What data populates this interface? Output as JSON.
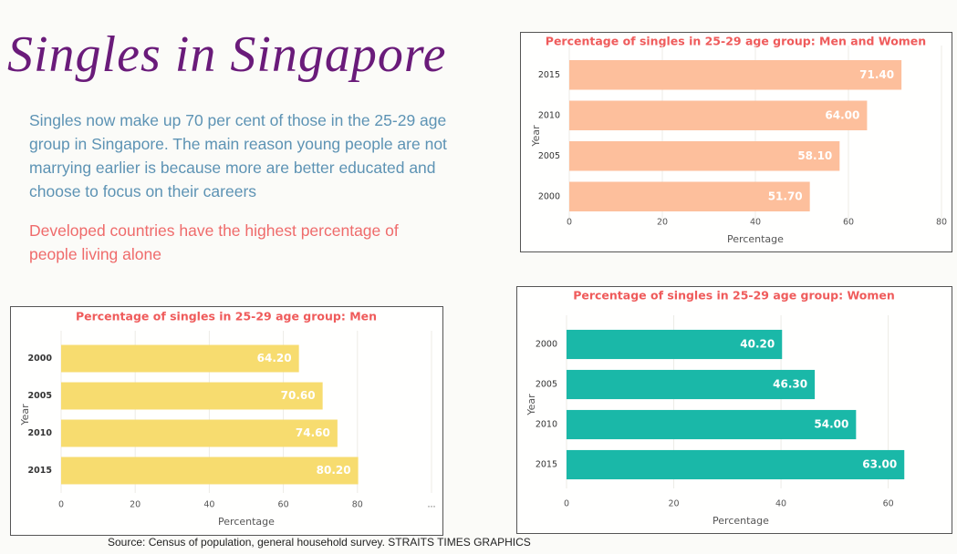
{
  "header": {
    "title": "Singles in Singapore",
    "intro": "Singles now make up 70 per cent of those in the 25-29 age group in Singapore. The main reason young people are not marrying earlier is because more are better educated and choose to focus on their careers",
    "note": "Developed  countries have the highest percentage of people living alone",
    "source": "Source: Census of population, general household survey. STRAITS TIMES GRAPHICS"
  },
  "chart_data": [
    {
      "type": "bar",
      "orientation": "horizontal",
      "title": "Percentage of singles in 25-29 age group: Men and Women",
      "categories": [
        "2015",
        "2010",
        "2005",
        "2000"
      ],
      "values": [
        71.4,
        64,
        58.1,
        51.7
      ],
      "value_labels": [
        "71.40",
        "64.00",
        "58.10",
        "51.70"
      ],
      "color": "#fdbf9c",
      "xlabel": "Percentage",
      "ylabel": "Year",
      "xlim": [
        0,
        80
      ],
      "xticks": [
        0,
        20,
        40,
        60,
        80
      ],
      "grid": true
    },
    {
      "type": "bar",
      "orientation": "horizontal",
      "title": "Percentage of singles in 25-29 age group: Men",
      "categories": [
        "2000",
        "2005",
        "2010",
        "2015"
      ],
      "values": [
        64.2,
        70.6,
        74.6,
        80.2
      ],
      "value_labels": [
        "64.20",
        "70.60",
        "74.60",
        "80.20"
      ],
      "color": "#f7dc6f",
      "xlabel": "Percentage",
      "ylabel": "Year",
      "xlim": [
        0,
        100
      ],
      "xticks": [
        0,
        20,
        40,
        60,
        80,
        {
          "value": 100,
          "label": "..."
        }
      ],
      "grid": true
    },
    {
      "type": "bar",
      "orientation": "horizontal",
      "title": "Percentage of singles in 25-29 age group: Women",
      "categories": [
        "2000",
        "2005",
        "2010",
        "2015"
      ],
      "values": [
        40.2,
        46.3,
        54,
        63
      ],
      "value_labels": [
        "40.20",
        "46.30",
        "54.00",
        "63.00"
      ],
      "color": "#1ab8a8",
      "xlabel": "Percentage",
      "ylabel": "Year",
      "xlim": [
        0,
        65
      ],
      "xticks": [
        0,
        20,
        40,
        60
      ],
      "grid": true
    }
  ]
}
